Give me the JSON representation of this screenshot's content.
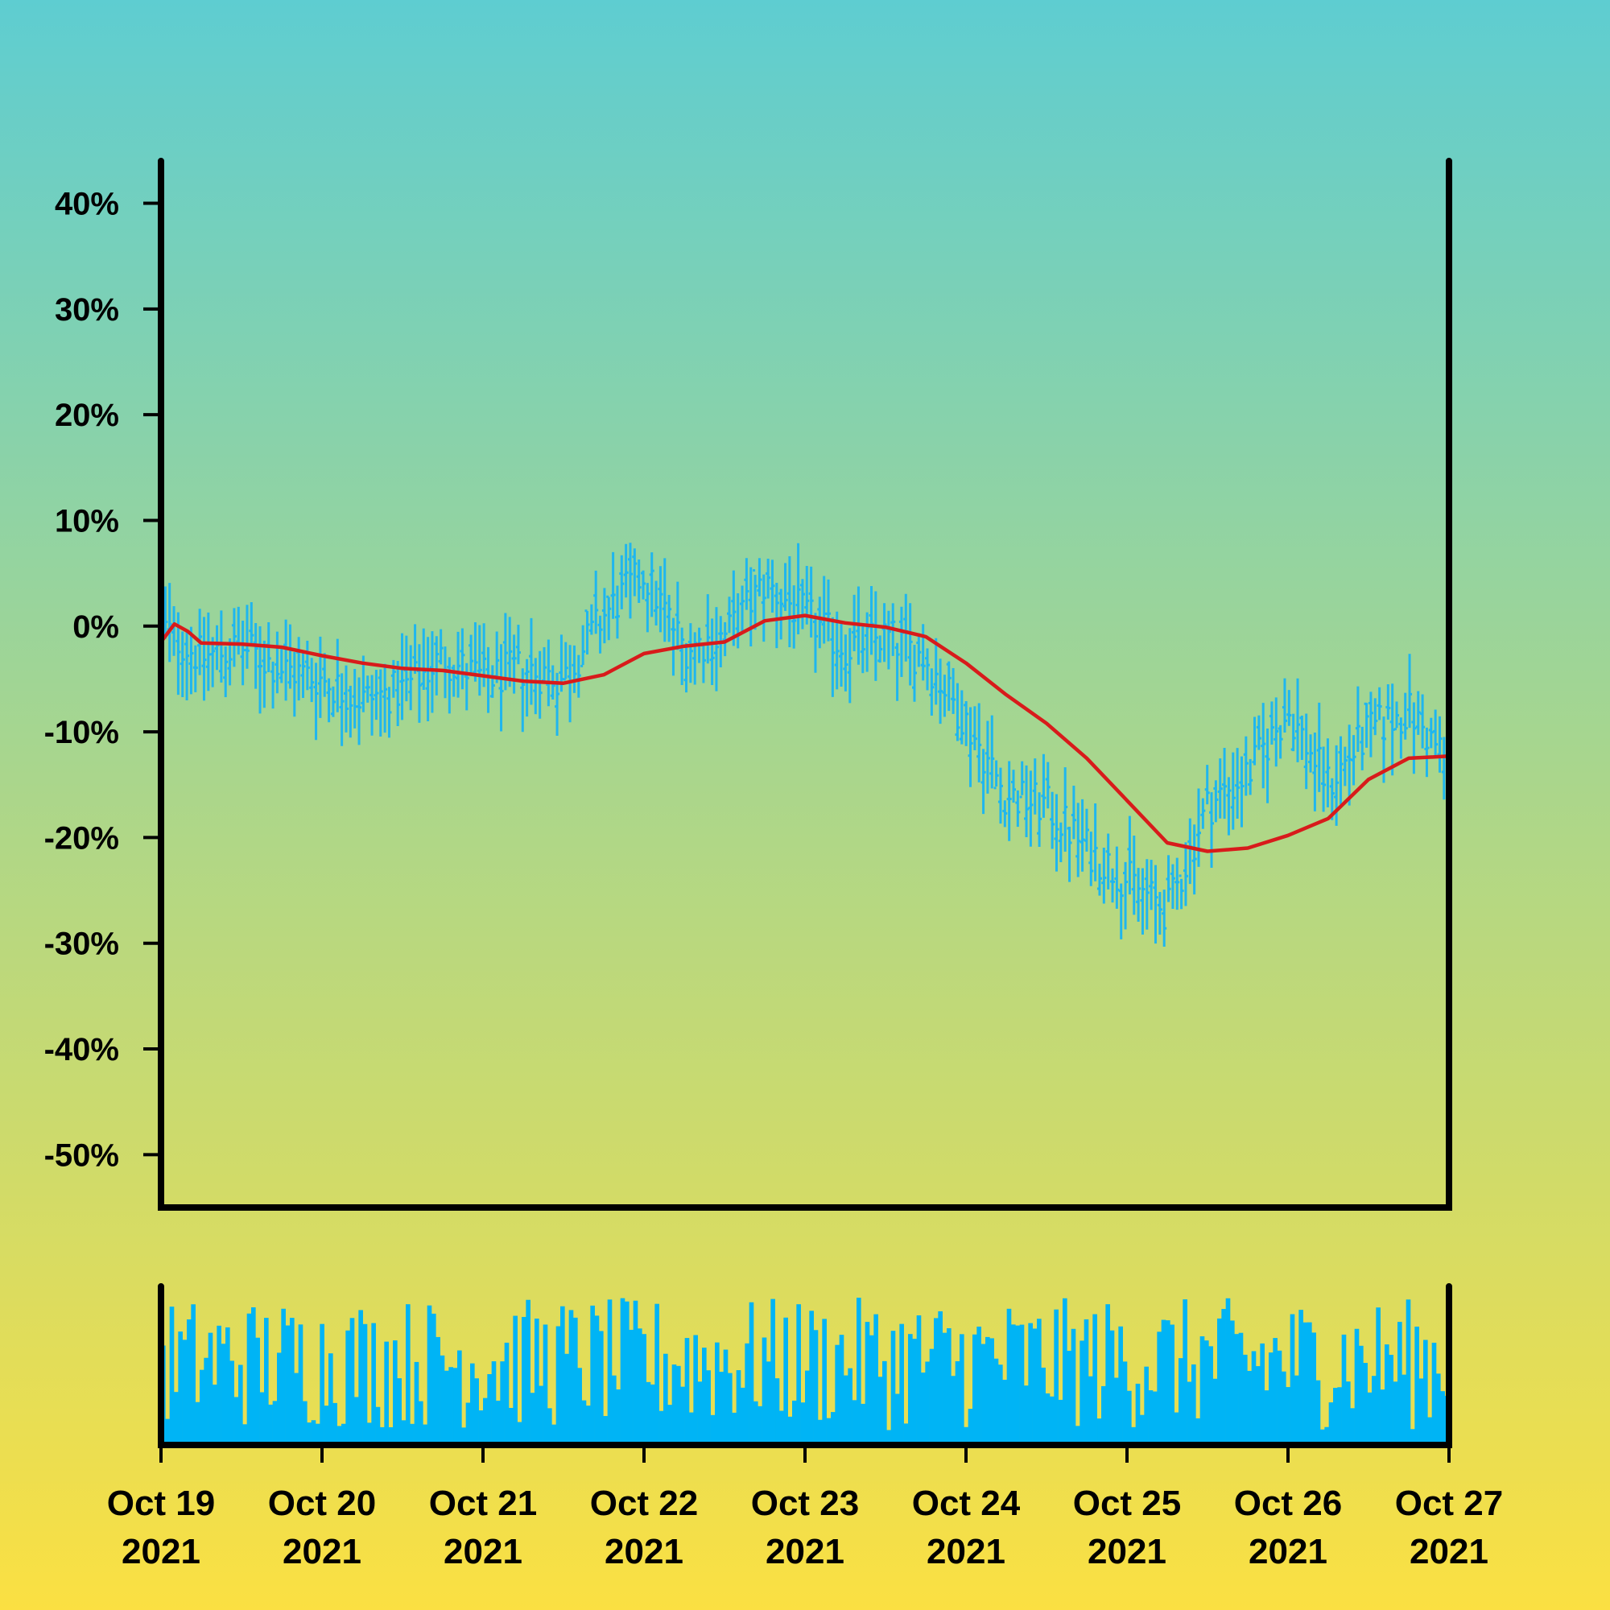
{
  "colors": {
    "background_top": "#5ecdd1",
    "background_bottom": "#fbe042",
    "ohlc": "#1fb6ee",
    "moving_average": "#d81b1b",
    "volume": "#00b4f5",
    "axis": "#000000"
  },
  "chart_data": {
    "type": "ohlc",
    "title": "",
    "xlabel": "",
    "ylabel": "",
    "y_axis": {
      "ticks": [
        40,
        30,
        20,
        10,
        0,
        -10,
        -20,
        -30,
        -40,
        -50
      ],
      "tick_labels": [
        "40%",
        "30%",
        "20%",
        "10%",
        "0%",
        "-10%",
        "-20%",
        "-30%",
        "-40%",
        "-50%"
      ],
      "ylim": [
        -55,
        44
      ]
    },
    "x_axis": {
      "range": [
        "2021-10-19",
        "2021-10-27"
      ],
      "ticks": [
        "2021-10-19",
        "2021-10-20",
        "2021-10-21",
        "2021-10-22",
        "2021-10-23",
        "2021-10-24",
        "2021-10-25",
        "2021-10-26",
        "2021-10-27"
      ],
      "tick_labels": [
        {
          "line1": "Oct 19",
          "line2": "2021"
        },
        {
          "line1": "Oct 20",
          "line2": "2021"
        },
        {
          "line1": "Oct 21",
          "line2": "2021"
        },
        {
          "line1": "Oct 22",
          "line2": "2021"
        },
        {
          "line1": "Oct 23",
          "line2": "2021"
        },
        {
          "line1": "Oct 24",
          "line2": "2021"
        },
        {
          "line1": "Oct 25",
          "line2": "2021"
        },
        {
          "line1": "Oct 26",
          "line2": "2021"
        },
        {
          "line1": "Oct 27",
          "line2": "2021"
        }
      ]
    },
    "price_anchors": [
      [
        "2021-10-19 00:00",
        0
      ],
      [
        "2021-10-19 06:00",
        -3
      ],
      [
        "2021-10-19 12:00",
        -2
      ],
      [
        "2021-10-19 18:00",
        -4
      ],
      [
        "2021-10-20 00:00",
        -5
      ],
      [
        "2021-10-20 06:00",
        -7
      ],
      [
        "2021-10-20 12:00",
        -6
      ],
      [
        "2021-10-20 18:00",
        -3
      ],
      [
        "2021-10-21 00:00",
        -5
      ],
      [
        "2021-10-21 06:00",
        -4
      ],
      [
        "2021-10-21 12:00",
        -5
      ],
      [
        "2021-10-21 18:00",
        1
      ],
      [
        "2021-10-22 00:00",
        5
      ],
      [
        "2021-10-22 06:00",
        -2
      ],
      [
        "2021-10-22 12:00",
        -1
      ],
      [
        "2021-10-22 18:00",
        4
      ],
      [
        "2021-10-23 00:00",
        1
      ],
      [
        "2021-10-23 06:00",
        -2
      ],
      [
        "2021-10-23 12:00",
        -1
      ],
      [
        "2021-10-23 18:00",
        -3
      ],
      [
        "2021-10-24 00:00",
        -9
      ],
      [
        "2021-10-24 06:00",
        -16
      ],
      [
        "2021-10-24 12:00",
        -17
      ],
      [
        "2021-10-24 18:00",
        -21
      ],
      [
        "2021-10-25 00:00",
        -24
      ],
      [
        "2021-10-25 06:00",
        -27
      ],
      [
        "2021-10-25 12:00",
        -17
      ],
      [
        "2021-10-25 18:00",
        -14
      ],
      [
        "2021-10-26 00:00",
        -8
      ],
      [
        "2021-10-26 06:00",
        -15
      ],
      [
        "2021-10-26 12:00",
        -10
      ],
      [
        "2021-10-26 18:00",
        -8
      ],
      [
        "2021-10-27 00:00",
        -13
      ],
      [
        "2021-10-27 06:00",
        -14
      ]
    ],
    "bar_count": 300,
    "moving_average": [
      [
        "2021-10-19 00:00",
        -1.5
      ],
      [
        "2021-10-19 02:00",
        0.2
      ],
      [
        "2021-10-19 04:00",
        -0.5
      ],
      [
        "2021-10-19 06:00",
        -1.6
      ],
      [
        "2021-10-19 12:00",
        -1.7
      ],
      [
        "2021-10-19 18:00",
        -2.0
      ],
      [
        "2021-10-20 00:00",
        -2.8
      ],
      [
        "2021-10-20 06:00",
        -3.5
      ],
      [
        "2021-10-20 12:00",
        -4.0
      ],
      [
        "2021-10-20 18:00",
        -4.2
      ],
      [
        "2021-10-21 00:00",
        -4.7
      ],
      [
        "2021-10-21 06:00",
        -5.2
      ],
      [
        "2021-10-21 12:00",
        -5.4
      ],
      [
        "2021-10-21 18:00",
        -4.6
      ],
      [
        "2021-10-22 00:00",
        -2.6
      ],
      [
        "2021-10-22 06:00",
        -1.9
      ],
      [
        "2021-10-22 12:00",
        -1.5
      ],
      [
        "2021-10-22 18:00",
        0.5
      ],
      [
        "2021-10-23 00:00",
        1.0
      ],
      [
        "2021-10-23 06:00",
        0.3
      ],
      [
        "2021-10-23 12:00",
        -0.1
      ],
      [
        "2021-10-23 18:00",
        -1.0
      ],
      [
        "2021-10-24 00:00",
        -3.5
      ],
      [
        "2021-10-24 06:00",
        -6.5
      ],
      [
        "2021-10-24 12:00",
        -9.2
      ],
      [
        "2021-10-24 18:00",
        -12.5
      ],
      [
        "2021-10-25 00:00",
        -16.5
      ],
      [
        "2021-10-25 06:00",
        -20.5
      ],
      [
        "2021-10-25 12:00",
        -21.3
      ],
      [
        "2021-10-25 18:00",
        -21.0
      ],
      [
        "2021-10-26 00:00",
        -19.8
      ],
      [
        "2021-10-26 06:00",
        -18.2
      ],
      [
        "2021-10-26 12:00",
        -14.5
      ],
      [
        "2021-10-26 18:00",
        -12.5
      ],
      [
        "2021-10-27 00:00",
        -12.3
      ]
    ]
  }
}
